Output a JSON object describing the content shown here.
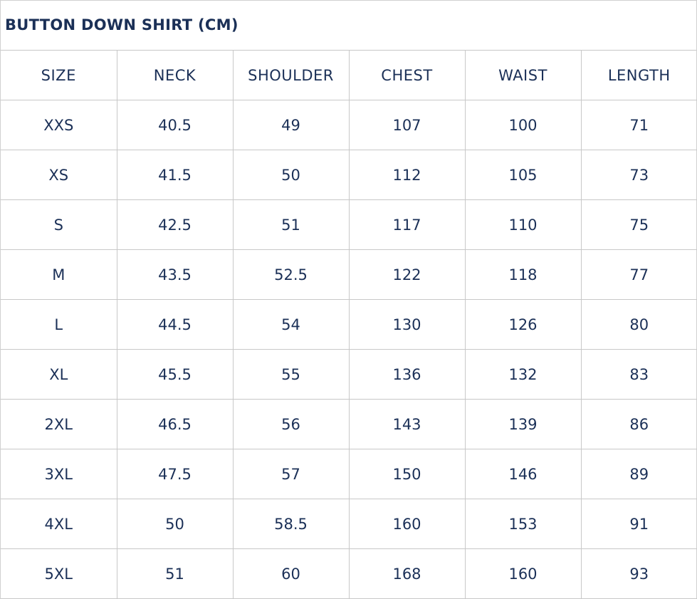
{
  "title": "BUTTON DOWN SHIRT (CM)",
  "headers": [
    "SIZE",
    "NECK",
    "SHOULDER",
    "CHEST",
    "WAIST",
    "LENGTH"
  ],
  "rows": [
    [
      "XXS",
      "40.5",
      "49",
      "107",
      "100",
      "71"
    ],
    [
      "XS",
      "41.5",
      "50",
      "112",
      "105",
      "73"
    ],
    [
      "S",
      "42.5",
      "51",
      "117",
      "110",
      "75"
    ],
    [
      "M",
      "43.5",
      "52.5",
      "122",
      "118",
      "77"
    ],
    [
      "L",
      "44.5",
      "54",
      "130",
      "126",
      "80"
    ],
    [
      "XL",
      "45.5",
      "55",
      "136",
      "132",
      "83"
    ],
    [
      "2XL",
      "46.5",
      "56",
      "143",
      "139",
      "86"
    ],
    [
      "3XL",
      "47.5",
      "57",
      "150",
      "146",
      "89"
    ],
    [
      "4XL",
      "50",
      "58.5",
      "160",
      "153",
      "91"
    ],
    [
      "5XL",
      "51",
      "60",
      "168",
      "160",
      "93"
    ]
  ],
  "colors": {
    "text": "#1b3057",
    "border": "#c8c8c8"
  }
}
